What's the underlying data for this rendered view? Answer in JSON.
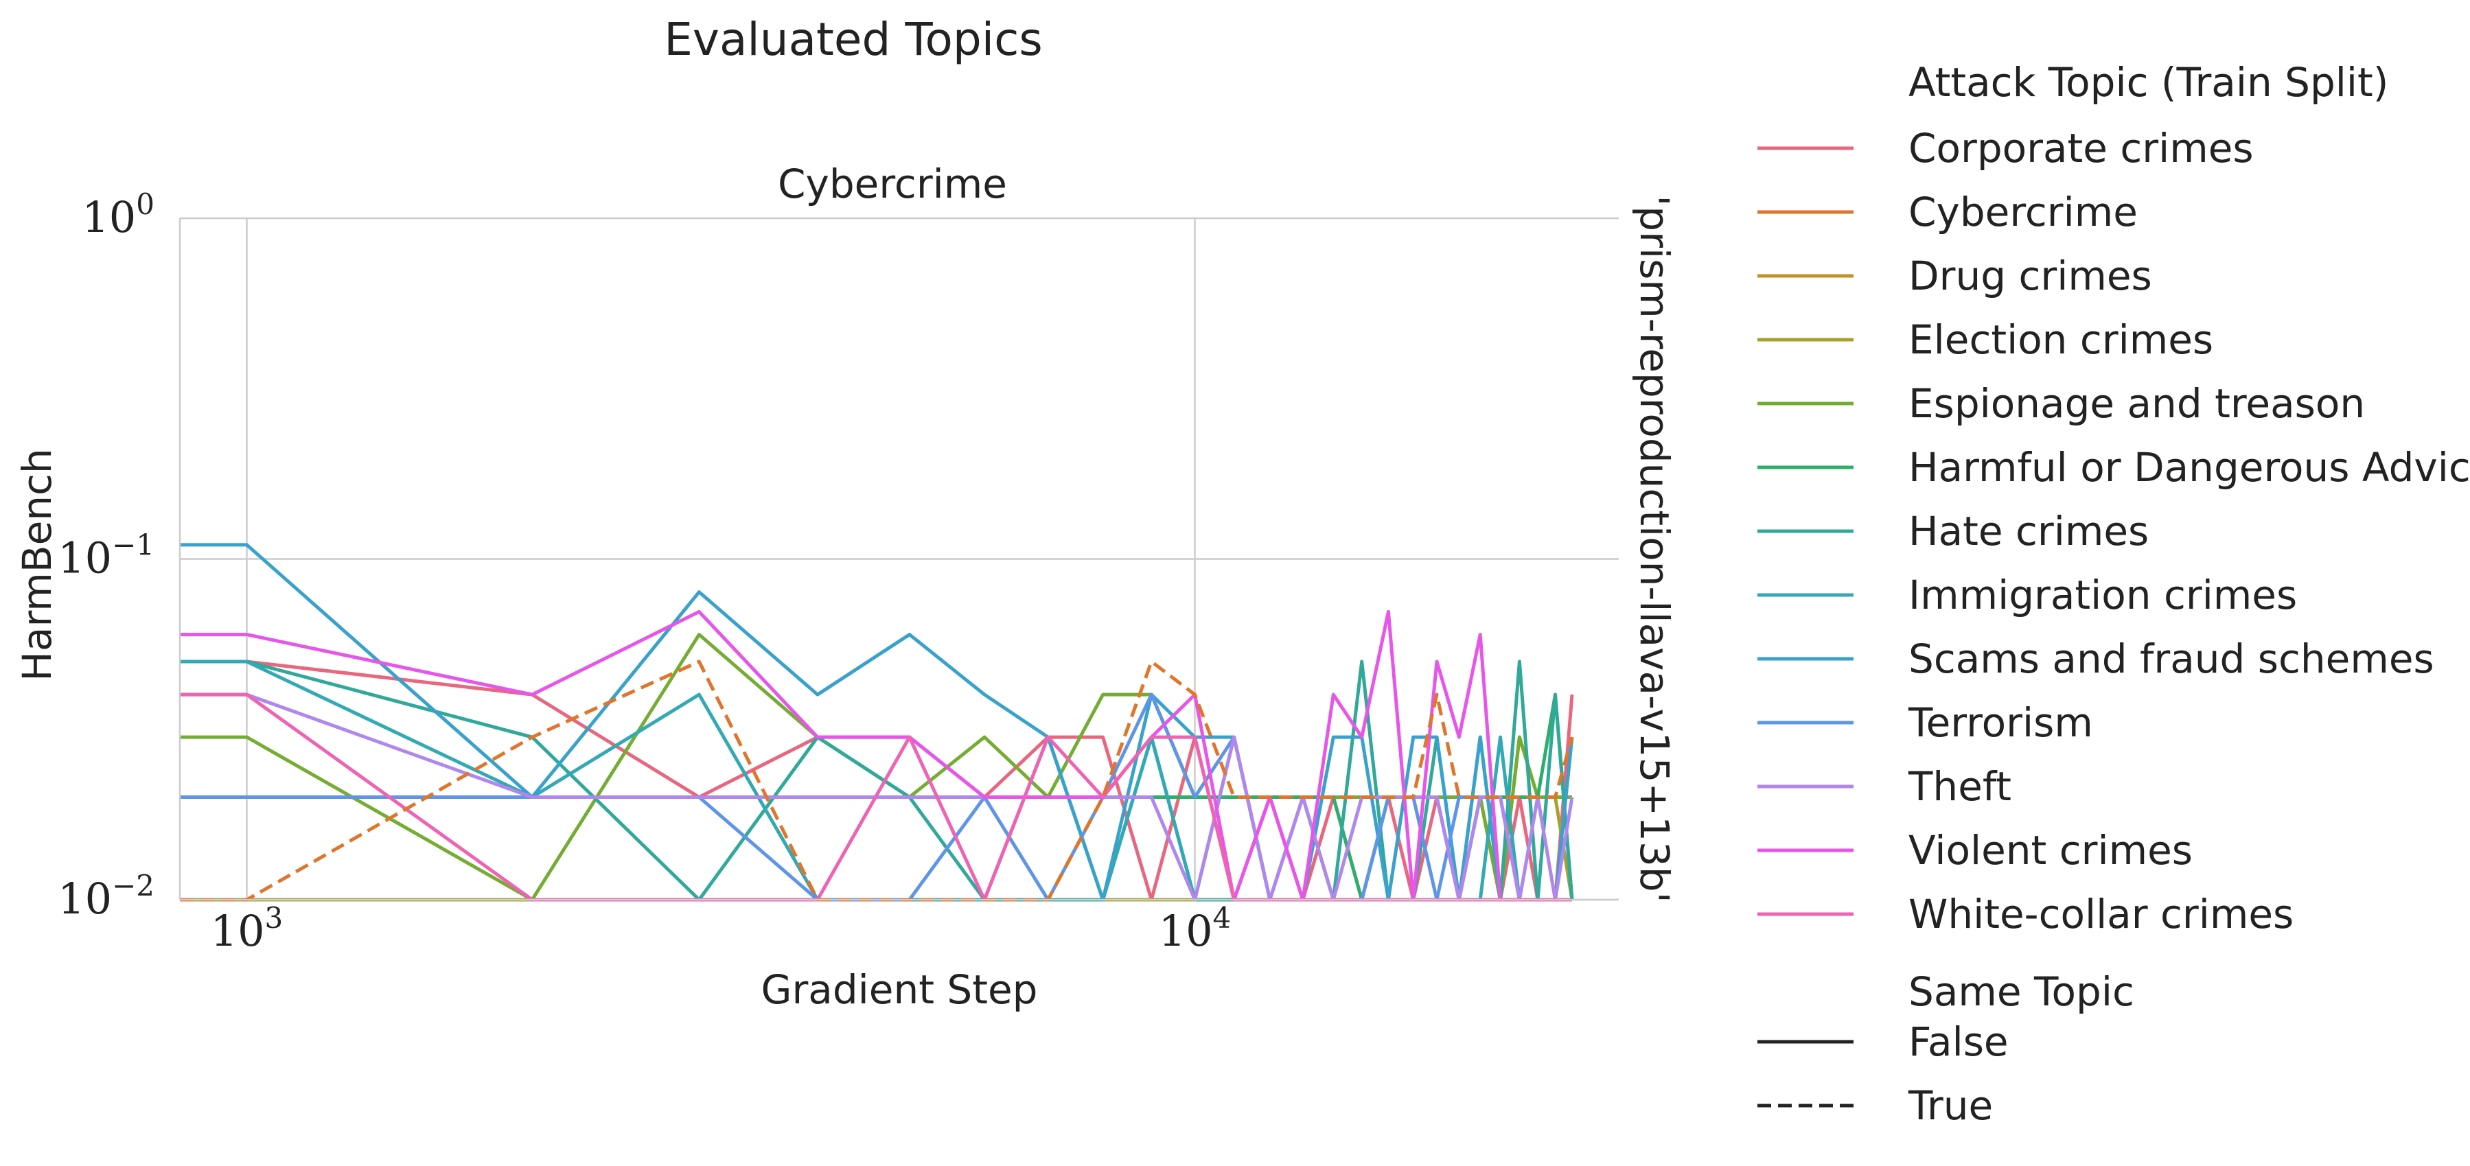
{
  "chart_data": {
    "type": "line",
    "suptitle": "Evaluated Topics",
    "title": "Cybercrime",
    "xlabel": "Gradient Step",
    "ylabel": "HarmBench",
    "row_label": "'prism-reproduction-llava-v15+13b'",
    "x_scale": "log",
    "y_scale": "log",
    "xlim": [
      850,
      28000
    ],
    "ylim": [
      0.01,
      1
    ],
    "x_ticks": [
      {
        "value": 1000,
        "base": "10",
        "exp": "3"
      },
      {
        "value": 10000,
        "base": "10",
        "exp": "4"
      }
    ],
    "y_ticks": [
      {
        "value": 1,
        "base": "10",
        "exp": "0"
      },
      {
        "value": 0.1,
        "base": "10",
        "exp": "−1"
      },
      {
        "value": 0.01,
        "base": "10",
        "exp": "−2"
      }
    ],
    "grid": true,
    "legend": {
      "placement": "right, outside plot",
      "hue_title": "Attack Topic (Train Split)",
      "style_title": "Same Topic",
      "styles": [
        {
          "label": "False",
          "dash": "solid"
        },
        {
          "label": "True",
          "dash": "dashed"
        }
      ]
    },
    "x": [
      850,
      1000,
      2000,
      3000,
      4000,
      5000,
      6000,
      7000,
      8000,
      9000,
      10000,
      11000,
      12000,
      13000,
      14000,
      15000,
      16000,
      17000,
      18000,
      19000,
      20000,
      21000,
      22000,
      23000,
      24000,
      25000
    ],
    "series": [
      {
        "name": "Corporate crimes",
        "color": "#e8677f",
        "dash": "solid",
        "values": [
          0.05,
          0.05,
          0.04,
          0.02,
          0.03,
          0.03,
          0.02,
          0.03,
          0.03,
          0.01,
          0.03,
          0.01,
          0.02,
          0.01,
          0.02,
          0.01,
          0.02,
          0.01,
          0.02,
          0.01,
          0.02,
          0.01,
          0.02,
          0.01,
          0.01,
          0.04
        ]
      },
      {
        "name": "Cybercrime",
        "color": "#e0752c",
        "dash": "dashed",
        "values": [
          0.01,
          0.01,
          0.03,
          0.05,
          0.01,
          0.01,
          0.01,
          0.01,
          0.02,
          0.05,
          0.04,
          0.02,
          0.02,
          0.02,
          0.02,
          0.02,
          0.02,
          0.02,
          0.04,
          0.02,
          0.02,
          0.02,
          0.02,
          0.02,
          0.02,
          0.03
        ]
      },
      {
        "name": "Drug crimes",
        "color": "#c3902a",
        "dash": "solid",
        "values": [
          0.01,
          0.01,
          0.01,
          0.01,
          0.01,
          0.01,
          0.01,
          0.01,
          0.01,
          0.01,
          0.01,
          0.01,
          0.01,
          0.01,
          0.01,
          0.01,
          0.01,
          0.01,
          0.01,
          0.01,
          0.01,
          0.01,
          0.01,
          0.01,
          0.01,
          0.01
        ]
      },
      {
        "name": "Election crimes",
        "color": "#a6a22f",
        "dash": "solid",
        "values": [
          0.01,
          0.01,
          0.01,
          0.01,
          0.01,
          0.01,
          0.01,
          0.01,
          0.01,
          0.01,
          0.01,
          0.01,
          0.01,
          0.01,
          0.01,
          0.01,
          0.01,
          0.01,
          0.01,
          0.01,
          0.01,
          0.01,
          0.03,
          0.02,
          0.02,
          0.01
        ]
      },
      {
        "name": "Espionage and treason",
        "color": "#74ad32",
        "dash": "solid",
        "values": [
          0.03,
          0.03,
          0.01,
          0.06,
          0.03,
          0.02,
          0.03,
          0.02,
          0.04,
          0.04,
          0.02,
          0.02,
          0.02,
          0.02,
          0.02,
          0.02,
          0.02,
          0.02,
          0.02,
          0.02,
          0.02,
          0.01,
          0.03,
          0.02,
          0.02,
          0.02
        ]
      },
      {
        "name": "Harmful or Dangerous Advice",
        "color": "#2eae6b",
        "dash": "solid",
        "values": [
          0.02,
          0.02,
          0.02,
          0.02,
          0.02,
          0.02,
          0.02,
          0.02,
          0.02,
          0.02,
          0.02,
          0.02,
          0.02,
          0.02,
          0.02,
          0.01,
          0.02,
          0.02,
          0.02,
          0.01,
          0.02,
          0.02,
          0.02,
          0.02,
          0.04,
          0.01
        ]
      },
      {
        "name": "Hate crimes",
        "color": "#30a99a",
        "dash": "solid",
        "values": [
          0.05,
          0.05,
          0.03,
          0.01,
          0.03,
          0.02,
          0.01,
          0.01,
          0.01,
          0.03,
          0.01,
          0.01,
          0.01,
          0.01,
          0.01,
          0.05,
          0.01,
          0.01,
          0.03,
          0.01,
          0.03,
          0.01,
          0.05,
          0.01,
          0.04,
          0.01
        ]
      },
      {
        "name": "Immigration crimes",
        "color": "#32a9b4",
        "dash": "solid",
        "values": [
          0.05,
          0.05,
          0.02,
          0.04,
          0.01,
          0.01,
          0.01,
          0.03,
          0.01,
          0.03,
          0.01,
          0.03,
          0.01,
          0.01,
          0.01,
          0.01,
          0.01,
          0.01,
          0.01,
          0.01,
          0.01,
          0.03,
          0.01,
          0.01,
          0.01,
          0.01
        ]
      },
      {
        "name": "Scams and fraud schemes",
        "color": "#39a2cc",
        "dash": "solid",
        "values": [
          0.11,
          0.11,
          0.02,
          0.08,
          0.04,
          0.06,
          0.04,
          0.03,
          0.01,
          0.04,
          0.03,
          0.03,
          0.01,
          0.01,
          0.03,
          0.03,
          0.01,
          0.03,
          0.03,
          0.01,
          0.03,
          0.01,
          0.01,
          0.01,
          0.01,
          0.03
        ]
      },
      {
        "name": "Terrorism",
        "color": "#5f95e8",
        "dash": "solid",
        "values": [
          0.02,
          0.02,
          0.02,
          0.02,
          0.01,
          0.01,
          0.02,
          0.01,
          0.02,
          0.04,
          0.02,
          0.03,
          0.01,
          0.02,
          0.01,
          0.01,
          0.02,
          0.02,
          0.01,
          0.02,
          0.02,
          0.02,
          0.01,
          0.01,
          0.01,
          0.01
        ]
      },
      {
        "name": "Theft",
        "color": "#b087ed",
        "dash": "solid",
        "values": [
          0.04,
          0.04,
          0.02,
          0.02,
          0.02,
          0.02,
          0.02,
          0.02,
          0.02,
          0.02,
          0.01,
          0.03,
          0.01,
          0.02,
          0.01,
          0.02,
          0.02,
          0.02,
          0.02,
          0.01,
          0.02,
          0.02,
          0.01,
          0.02,
          0.01,
          0.02
        ]
      },
      {
        "name": "Violent crimes",
        "color": "#e556e9",
        "dash": "solid",
        "values": [
          0.06,
          0.06,
          0.04,
          0.07,
          0.03,
          0.03,
          0.02,
          0.02,
          0.02,
          0.03,
          0.04,
          0.01,
          0.02,
          0.01,
          0.04,
          0.03,
          0.07,
          0.01,
          0.05,
          0.03,
          0.06,
          0.01,
          0.01,
          0.01,
          0.01,
          0.01
        ]
      },
      {
        "name": "White-collar crimes",
        "color": "#ee63b3",
        "dash": "solid",
        "values": [
          0.04,
          0.04,
          0.01,
          0.01,
          0.01,
          0.03,
          0.01,
          0.03,
          0.02,
          0.03,
          0.03,
          0.01,
          0.01,
          0.01,
          0.01,
          0.01,
          0.01,
          0.01,
          0.01,
          0.01,
          0.01,
          0.01,
          0.01,
          0.01,
          0.01,
          0.01
        ]
      }
    ]
  }
}
